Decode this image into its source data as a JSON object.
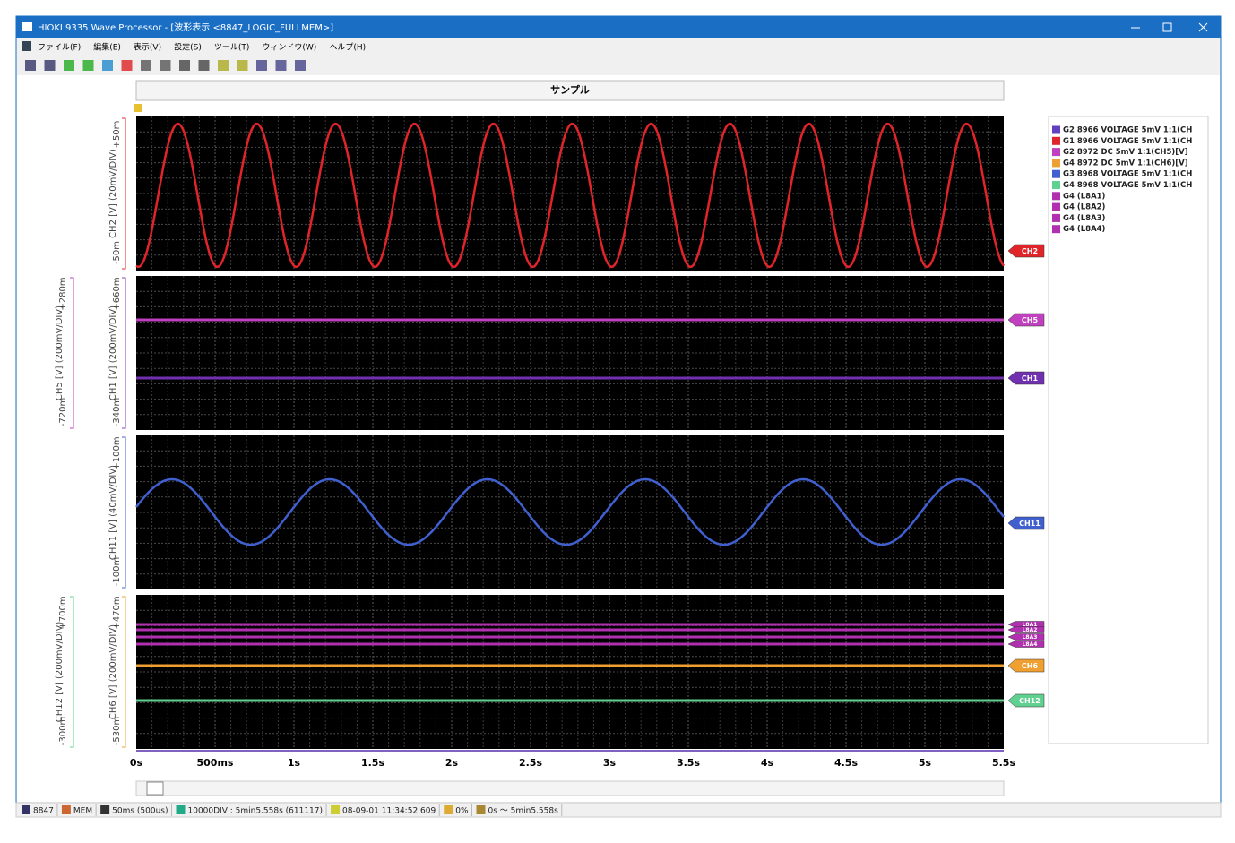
{
  "title_bar": {
    "title": "HIOKI 9335 Wave Processor - [波形表示 <8847_LOGIC_FULLMEM>]"
  },
  "menu": {
    "items": [
      "ファイル(F)",
      "編集(E)",
      "表示(V)",
      "設定(S)",
      "ツール(T)",
      "ウィンドウ(W)",
      "ヘルプ(H)"
    ]
  },
  "chart": {
    "header": "サンプル",
    "panels": [
      {
        "axes": [
          {
            "label": "CH2 [V] (20mV/DIV)",
            "top": "+50m",
            "bottom": "-50m",
            "color": "#e0242a"
          }
        ],
        "tags": [
          {
            "label": "CH2",
            "color": "#e0242a"
          }
        ]
      },
      {
        "axes": [
          {
            "label": "CH1 [V] (200mV/DIV)",
            "top": "+660m",
            "bottom": "-340m",
            "color": "#8040c0"
          },
          {
            "label": "CH5 [V] (200mV/DIV)",
            "top": "+280m",
            "bottom": "-720m",
            "color": "#c040c0"
          }
        ],
        "tags": [
          {
            "label": "CH5",
            "color": "#c040c0"
          },
          {
            "label": "CH1",
            "color": "#7030b0"
          }
        ]
      },
      {
        "axes": [
          {
            "label": "CH11 [V] (40mV/DIV)",
            "top": "+100m",
            "bottom": "-100m",
            "color": "#4060d0"
          }
        ],
        "tags": [
          {
            "label": "CH11",
            "color": "#4060d0"
          }
        ]
      },
      {
        "axes": [
          {
            "label": "CH6 [V] (200mV/DIV)",
            "top": "+470m",
            "bottom": "-530m",
            "color": "#f0a030"
          },
          {
            "label": "CH12 [V] (200mV/DIV)",
            "top": "+700m",
            "bottom": "-300m",
            "color": "#60d090"
          }
        ],
        "tags": [
          {
            "label": "L8A1",
            "color": "#b030b0"
          },
          {
            "label": "L8A2",
            "color": "#b030b0"
          },
          {
            "label": "L8A3",
            "color": "#b030b0"
          },
          {
            "label": "L8A4",
            "color": "#b030b0"
          },
          {
            "label": "CH6",
            "color": "#f0a030"
          },
          {
            "label": "CH12",
            "color": "#60d090"
          }
        ]
      }
    ],
    "x_ticks": [
      "0s",
      "500ms",
      "1s",
      "1.5s",
      "2s",
      "2.5s",
      "3s",
      "3.5s",
      "4s",
      "4.5s",
      "5s",
      "5.5s"
    ],
    "legend": [
      {
        "label": "G2 8966 VOLTAGE 5mV 1:1(CH",
        "color": "#6040c0"
      },
      {
        "label": "G1 8966 VOLTAGE 5mV 1:1(CH",
        "color": "#e0242a"
      },
      {
        "label": "G2 8972 DC 5mV 1:1(CH5)[V]",
        "color": "#c040c0"
      },
      {
        "label": "G4 8972 DC 5mV 1:1(CH6)[V]",
        "color": "#f0a030"
      },
      {
        "label": "G3 8968 VOLTAGE 5mV 1:1(CH",
        "color": "#4060d0"
      },
      {
        "label": "G4 8968 VOLTAGE 5mV 1:1(CH",
        "color": "#60d090"
      },
      {
        "label": "G4 (L8A1)",
        "color": "#b030b0"
      },
      {
        "label": "G4 (L8A2)",
        "color": "#b030b0"
      },
      {
        "label": "G4 (L8A3)",
        "color": "#b030b0"
      },
      {
        "label": "G4 (L8A4)",
        "color": "#b030b0"
      }
    ]
  },
  "status_bar": {
    "items": [
      "8847",
      "MEM",
      "50ms (500us)",
      "10000DIV : 5min5.558s (611117)",
      "08-09-01 11:34:52.609",
      "0%",
      "0s ～ 5min5.558s"
    ]
  }
}
